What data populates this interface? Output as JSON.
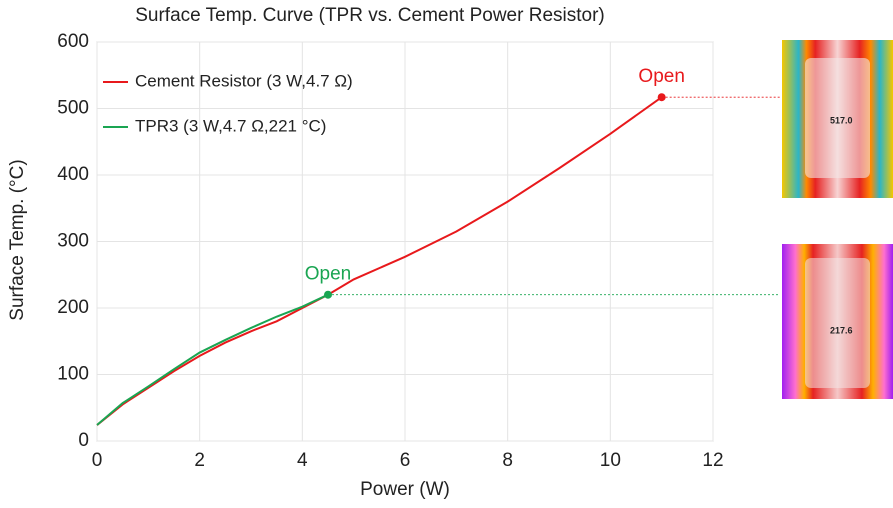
{
  "chart_data": {
    "type": "line",
    "title": "Surface Temp. Curve (TPR vs. Cement Power Resistor)",
    "x_label": "Power (W)",
    "y_label": "Surface Temp. (°C)",
    "xlim": [
      0,
      12
    ],
    "xticks": [
      0,
      2,
      4,
      6,
      8,
      10,
      12
    ],
    "ylim": [
      0,
      600
    ],
    "yticks": [
      0,
      100,
      200,
      300,
      400,
      500,
      600
    ],
    "grid": true,
    "legend": "upper left",
    "series": [
      {
        "name": "Cement Resistor (3 W,4.7 Ω)",
        "color": "#e8191c",
        "end_label": "Open",
        "x": [
          0,
          0.5,
          1,
          1.5,
          2,
          2.5,
          3,
          3.5,
          4,
          4.5,
          5,
          6,
          7,
          8,
          9,
          10,
          11
        ],
        "values": [
          24,
          55,
          80,
          105,
          128,
          148,
          165,
          180,
          200,
          220,
          243,
          277,
          315,
          360,
          410,
          462,
          517
        ]
      },
      {
        "name": "TPR3 (3 W,4.7 Ω,221 °C)",
        "color": "#1aa552",
        "end_label": "Open",
        "x": [
          0,
          0.5,
          1,
          1.5,
          2,
          2.5,
          3,
          3.5,
          4,
          4.5
        ],
        "values": [
          24,
          57,
          82,
          108,
          133,
          152,
          170,
          187,
          202,
          220
        ]
      }
    ],
    "thermal_labels": [
      "517.0",
      "217.6"
    ]
  }
}
